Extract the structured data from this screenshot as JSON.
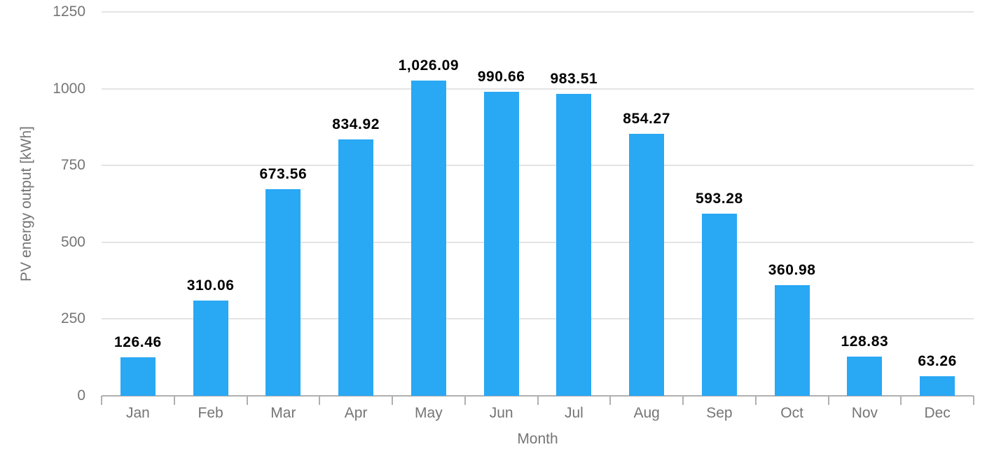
{
  "chart_data": {
    "type": "bar",
    "title": "",
    "categories": [
      "Jan",
      "Feb",
      "Mar",
      "Apr",
      "May",
      "Jun",
      "Jul",
      "Aug",
      "Sep",
      "Oct",
      "Nov",
      "Dec"
    ],
    "values": [
      126.46,
      310.06,
      673.56,
      834.92,
      1026.09,
      990.66,
      983.51,
      854.27,
      593.28,
      360.98,
      128.83,
      63.26
    ],
    "value_labels": [
      "126.46",
      "310.06",
      "673.56",
      "834.92",
      "1,026.09",
      "990.66",
      "983.51",
      "854.27",
      "593.28",
      "360.98",
      "128.83",
      "63.26"
    ],
    "xlabel": "Month",
    "ylabel": "PV energy output [kWh]",
    "ylim": [
      0,
      1250
    ],
    "yticks": [
      0,
      250,
      500,
      750,
      1000,
      1250
    ],
    "ytick_labels": [
      "0",
      "250",
      "500",
      "750",
      "1000",
      "1250"
    ],
    "grid": true,
    "legend": "none",
    "colors": {
      "bar": "#29a8f4",
      "value_label": "#000000",
      "axis_text": "#757575",
      "gridline": "#e4e4e4",
      "axis_line": "#b0b0b0",
      "background": "#ffffff"
    }
  }
}
